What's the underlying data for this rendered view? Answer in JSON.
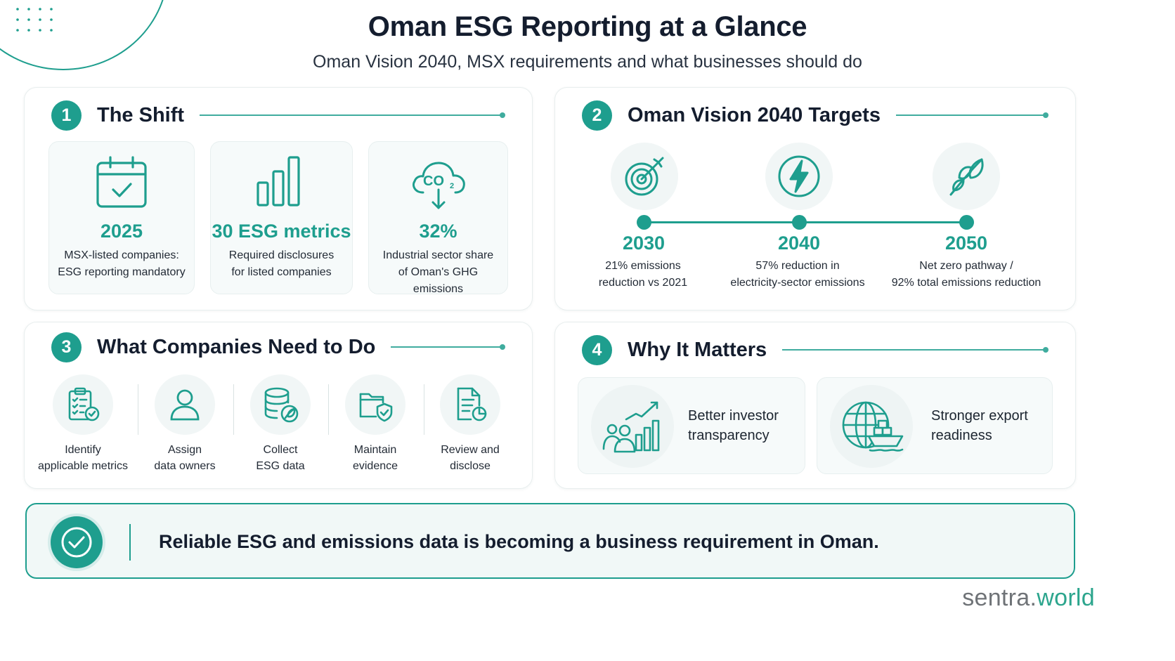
{
  "header": {
    "title": "Oman ESG Reporting at a Glance",
    "subtitle": "Oman Vision 2040, MSX requirements and what businesses should do"
  },
  "sections": {
    "shift": {
      "number": "1",
      "title": "The Shift",
      "items": [
        {
          "icon": "calendar-check-icon",
          "value": "2025",
          "desc_1": "MSX-listed companies:",
          "desc_2": "ESG reporting mandatory"
        },
        {
          "icon": "bar-chart-icon",
          "value": "30 ESG metrics",
          "desc_1": "Required disclosures",
          "desc_2": "for listed companies"
        },
        {
          "icon": "co2-cloud-icon",
          "icon_text": "CO",
          "icon_sub": "2",
          "value": "32%",
          "desc_1": "Industrial sector share",
          "desc_2": "of Oman's GHG emissions"
        }
      ]
    },
    "targets": {
      "number": "2",
      "title": "Oman Vision 2040 Targets",
      "items": [
        {
          "icon": "target-icon",
          "year": "2030",
          "desc_1": "21% emissions",
          "desc_2": "reduction vs 2021"
        },
        {
          "icon": "lightning-icon",
          "year": "2040",
          "desc_1": "57% reduction in",
          "desc_2": "electricity-sector emissions"
        },
        {
          "icon": "leaf-icon",
          "year": "2050",
          "desc_1": "Net zero pathway /",
          "desc_2": "92% total emissions reduction"
        }
      ]
    },
    "actions": {
      "number": "3",
      "title": "What Companies Need to Do",
      "steps": [
        {
          "icon": "clipboard-checklist-icon",
          "label_1": "Identify",
          "label_2": "applicable metrics"
        },
        {
          "icon": "user-icon",
          "label_1": "Assign",
          "label_2": "data owners"
        },
        {
          "icon": "database-leaf-icon",
          "label_1": "Collect",
          "label_2": "ESG data"
        },
        {
          "icon": "folder-shield-icon",
          "label_1": "Maintain",
          "label_2": "evidence"
        },
        {
          "icon": "document-chart-icon",
          "label_1": "Review and",
          "label_2": "disclose"
        }
      ]
    },
    "why": {
      "number": "4",
      "title": "Why It Matters",
      "items": [
        {
          "icon": "investors-growth-icon",
          "line_1": "Better investor",
          "line_2": "transparency"
        },
        {
          "icon": "globe-ship-icon",
          "line_1": "Stronger export",
          "line_2": "readiness"
        }
      ]
    }
  },
  "banner": {
    "icon": "check-circle-icon",
    "text": "Reliable ESG and emissions data is becoming a business requirement in Oman."
  },
  "brand": {
    "name_part_1": "sentra.",
    "name_part_2": "world"
  },
  "colors": {
    "accent": "#1e9e8e",
    "title": "#141d2e",
    "panel": "#f6fafa"
  }
}
